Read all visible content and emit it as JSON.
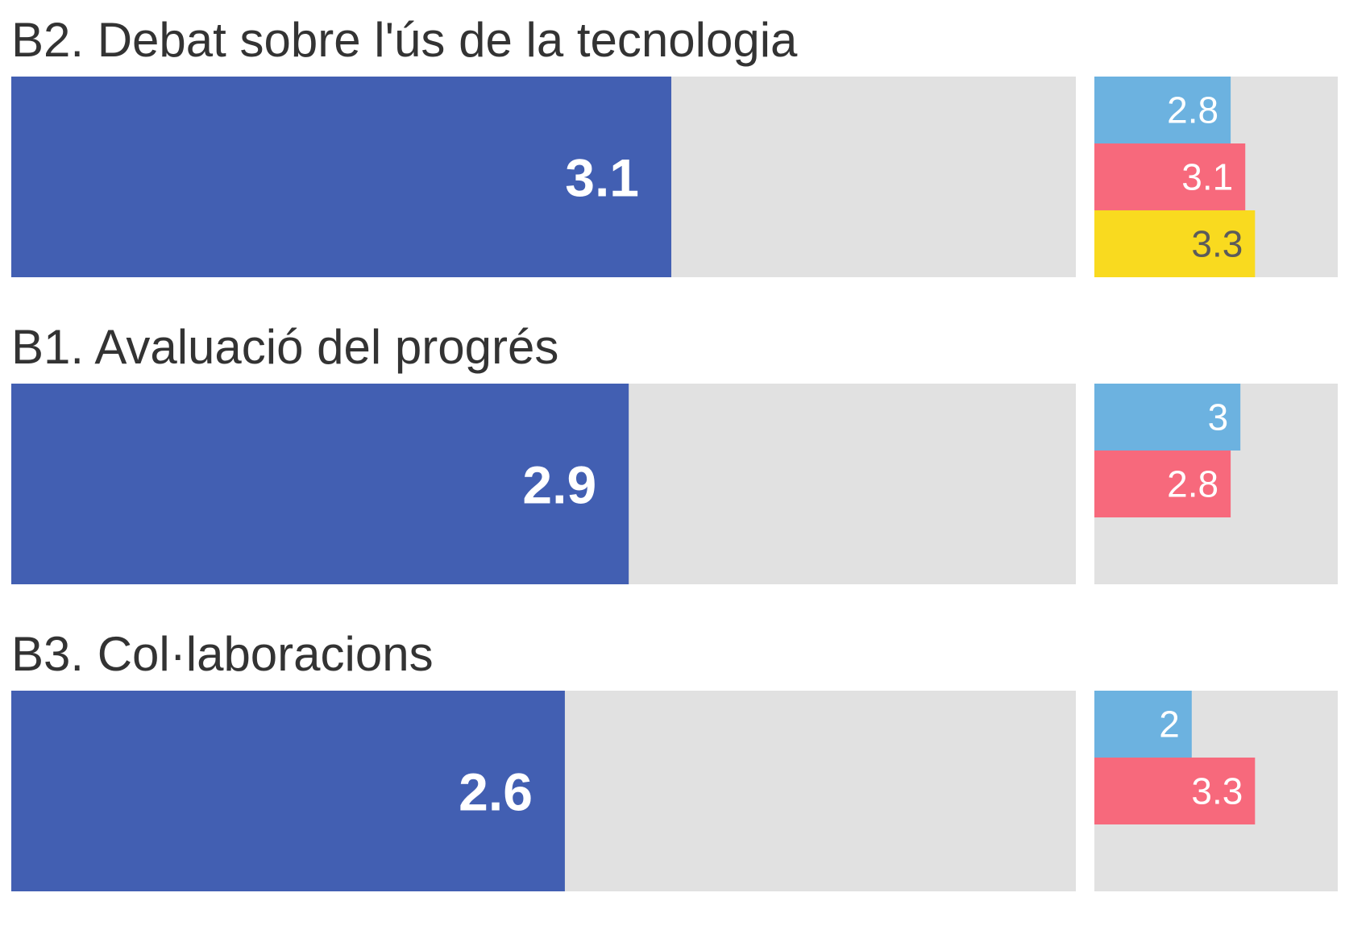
{
  "chart_data": {
    "type": "bar",
    "orientation": "horizontal",
    "scale_max": 5,
    "colors": {
      "main": "#425fb2",
      "track": "#e1e1e1",
      "series": [
        "#6cb2e0",
        "#f7697c",
        "#f9da1f"
      ],
      "series_label_colors": [
        "#ffffff",
        "#ffffff",
        "#5b5b5b"
      ]
    },
    "groups": [
      {
        "title": "B2. Debat sobre l'ús de la tecnologia",
        "value": 3.1,
        "value_label": "3.1",
        "sub_values": [
          2.8,
          3.1,
          3.3
        ],
        "sub_labels": [
          "2.8",
          "3.1",
          "3.3"
        ]
      },
      {
        "title": "B1. Avaluació del progrés",
        "value": 2.9,
        "value_label": "2.9",
        "sub_values": [
          3,
          2.8
        ],
        "sub_labels": [
          "3",
          "2.8"
        ]
      },
      {
        "title": "B3. Col·laboracions",
        "value": 2.6,
        "value_label": "2.6",
        "sub_values": [
          2,
          3.3
        ],
        "sub_labels": [
          "2",
          "3.3"
        ]
      }
    ]
  }
}
